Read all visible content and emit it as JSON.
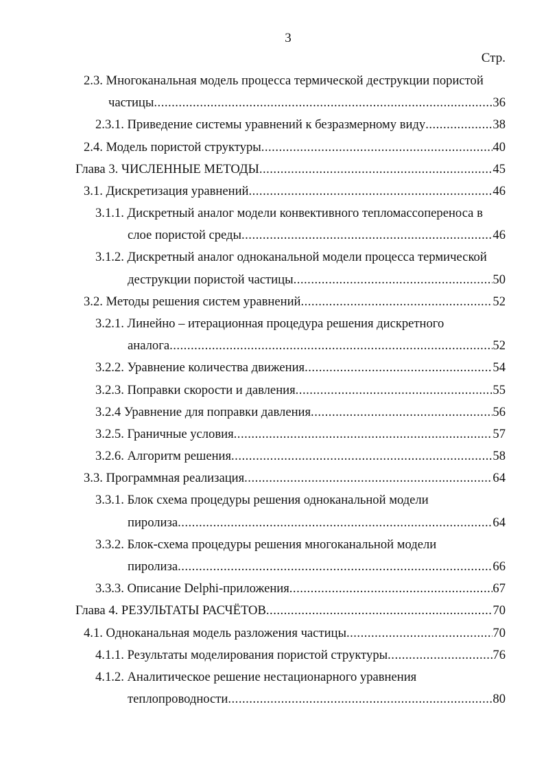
{
  "page_number": "3",
  "page_column_label": "Стр.",
  "toc": [
    {
      "level": 1,
      "num": "2.3.",
      "lines": [
        "Многоканальная модель процесса термической деструкции пористой",
        "частицы"
      ],
      "page": "36"
    },
    {
      "level": 2,
      "num": "2.3.1.",
      "lines": [
        "Приведение системы уравнений к безразмерному виду"
      ],
      "page": "38"
    },
    {
      "level": 1,
      "num": "2.4.",
      "lines": [
        "Модель пористой структуры"
      ],
      "page": "40"
    },
    {
      "level": 0,
      "num": "Глава 3.",
      "lines": [
        "ЧИСЛЕННЫЕ МЕТОДЫ"
      ],
      "page": "45"
    },
    {
      "level": 1,
      "num": "3.1.",
      "lines": [
        "Дискретизация уравнений"
      ],
      "page": "46"
    },
    {
      "level": 2,
      "num": "3.1.1.",
      "lines": [
        "Дискретный аналог модели конвективного тепломассопереноса в",
        "слое пористой среды"
      ],
      "page": "46"
    },
    {
      "level": 2,
      "num": "3.1.2.",
      "lines": [
        "Дискретный аналог одноканальной модели процесса термической",
        "деструкции пористой частицы"
      ],
      "page": "50"
    },
    {
      "level": 1,
      "num": "3.2.",
      "lines": [
        "Методы решения систем уравнений"
      ],
      "page": "52"
    },
    {
      "level": 2,
      "num": "3.2.1.",
      "lines": [
        "Линейно – итерационная процедура решения дискретного",
        "аналога"
      ],
      "page": "52"
    },
    {
      "level": 2,
      "num": "3.2.2.",
      "lines": [
        "Уравнение количества движения"
      ],
      "page": "54"
    },
    {
      "level": 2,
      "num": "3.2.3.",
      "lines": [
        "Поправки скорости и давления"
      ],
      "page": "55"
    },
    {
      "level": 2,
      "num": "3.2.4",
      "lines": [
        "Уравнение для поправки давления"
      ],
      "page": "56"
    },
    {
      "level": 2,
      "num": "3.2.5.",
      "lines": [
        "Граничные условия"
      ],
      "page": "57"
    },
    {
      "level": 2,
      "num": "3.2.6.",
      "lines": [
        "Алгоритм решения"
      ],
      "page": "58"
    },
    {
      "level": 1,
      "num": "3.3.",
      "lines": [
        "Программная реализация"
      ],
      "page": "64"
    },
    {
      "level": 2,
      "num": "3.3.1.",
      "lines": [
        "Блок схема процедуры решения одноканальной модели",
        "пиролиза"
      ],
      "page": "64"
    },
    {
      "level": 2,
      "num": "3.3.2.",
      "lines": [
        "Блок-схема процедуры решения многоканальной модели",
        "пиролиза"
      ],
      "page": "66"
    },
    {
      "level": 2,
      "num": "3.3.3.",
      "lines": [
        "Описание Delphi-приложения"
      ],
      "page": "67"
    },
    {
      "level": 0,
      "num": "Глава 4.",
      "lines": [
        "РЕЗУЛЬТАТЫ РАСЧЁТОВ"
      ],
      "page": "70"
    },
    {
      "level": 1,
      "num": "4.1.",
      "lines": [
        "Одноканальная модель разложения частицы"
      ],
      "page": "70"
    },
    {
      "level": 2,
      "num": "4.1.1.",
      "lines": [
        "Результаты моделирования пористой структуры"
      ],
      "page": "76"
    },
    {
      "level": 2,
      "num": "4.1.2.",
      "lines": [
        "Аналитическое решение нестационарного уравнения",
        "теплопроводности"
      ],
      "page": "80"
    }
  ]
}
